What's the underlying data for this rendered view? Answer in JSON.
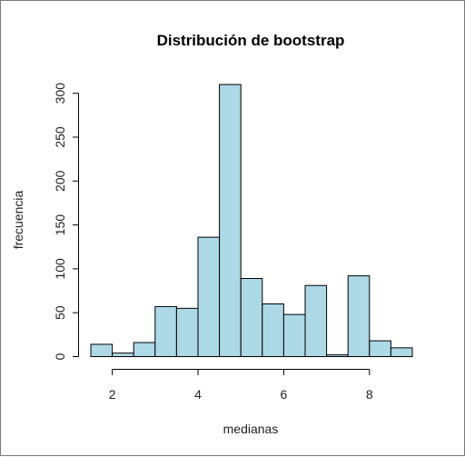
{
  "chart_data": {
    "type": "bar",
    "title": "Distribución de bootstrap",
    "xlabel": "medianas",
    "ylabel": "frecuencia",
    "bin_edges": [
      1.5,
      2.0,
      2.5,
      3.0,
      3.5,
      4.0,
      4.5,
      5.0,
      5.5,
      6.0,
      6.5,
      7.0,
      7.5,
      8.0,
      8.5,
      9.0
    ],
    "values": [
      14,
      4,
      16,
      57,
      55,
      136,
      310,
      89,
      60,
      48,
      81,
      2,
      92,
      18,
      10
    ],
    "xlim": [
      1.5,
      9.0
    ],
    "ylim": [
      0,
      310
    ],
    "x_ticks": [
      2,
      4,
      6,
      8
    ],
    "y_ticks": [
      0,
      50,
      100,
      150,
      200,
      250,
      300
    ],
    "bar_fill": "#add8e6",
    "bar_stroke": "#000000",
    "grid": false,
    "legend": "none"
  }
}
